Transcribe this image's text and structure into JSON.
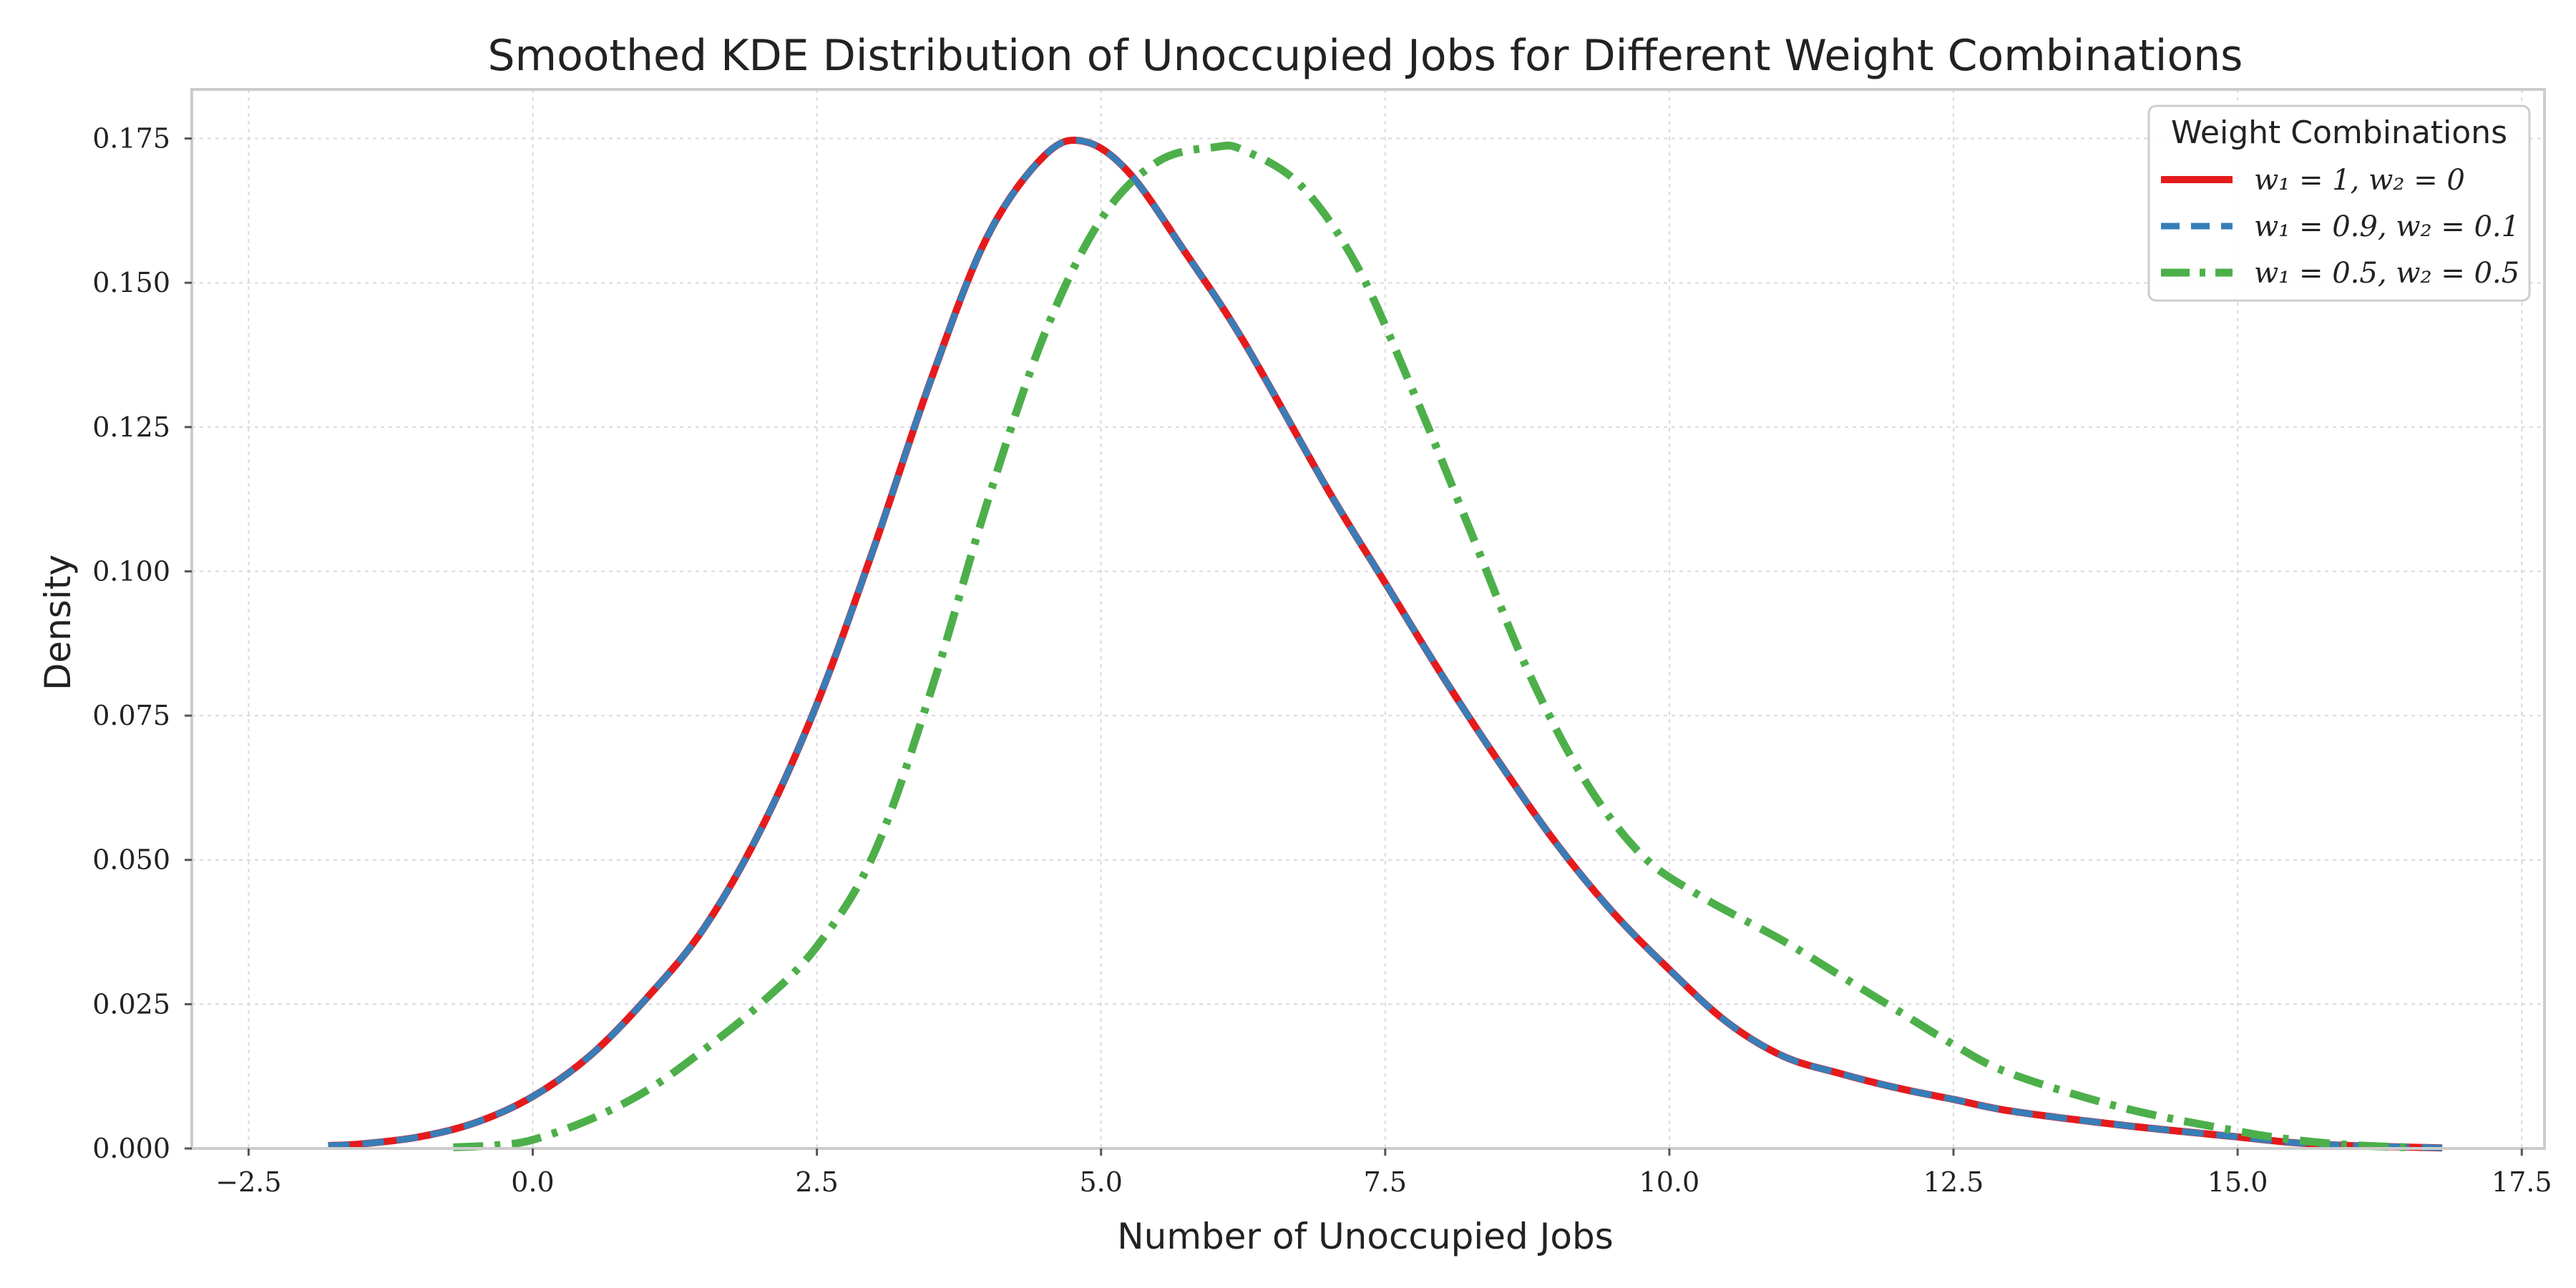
{
  "chart_data": {
    "type": "line",
    "title": "Smoothed KDE Distribution of Unoccupied Jobs for Different Weight Combinations",
    "xlabel": "Number of Unoccupied Jobs",
    "ylabel": "Density",
    "xlim": [
      -3.0,
      17.7
    ],
    "ylim": [
      0,
      0.1835
    ],
    "x_ticks": [
      -2.5,
      0.0,
      2.5,
      5.0,
      7.5,
      10.0,
      12.5,
      15.0,
      17.5
    ],
    "x_tick_labels": [
      "−2.5",
      "0.0",
      "2.5",
      "5.0",
      "7.5",
      "10.0",
      "12.5",
      "15.0",
      "17.5"
    ],
    "y_ticks": [
      0.0,
      0.025,
      0.05,
      0.075,
      0.1,
      0.125,
      0.15,
      0.175
    ],
    "y_tick_labels": [
      "0.000",
      "0.025",
      "0.050",
      "0.075",
      "0.100",
      "0.125",
      "0.150",
      "0.175"
    ],
    "grid": true,
    "legend": {
      "title": "Weight Combinations",
      "placement": "top-right"
    },
    "series": [
      {
        "name": "w1 = 1, w2 = 0",
        "legend_label": "w₁ = 1, w₂ = 0",
        "color": "#e41a1c",
        "style": "solid",
        "x": [
          -1.8,
          -1.5,
          -1.0,
          -0.5,
          0.0,
          0.5,
          1.0,
          1.5,
          2.0,
          2.5,
          3.0,
          3.5,
          4.0,
          4.5,
          4.85,
          5.25,
          5.75,
          6.25,
          7.0,
          7.5,
          8.0,
          8.5,
          9.0,
          9.5,
          10.0,
          10.5,
          11.0,
          11.5,
          12.0,
          12.5,
          13.0,
          14.0,
          15.0,
          15.5,
          16.0,
          16.8
        ],
        "y": [
          0.0005,
          0.0008,
          0.002,
          0.0045,
          0.009,
          0.016,
          0.026,
          0.038,
          0.055,
          0.077,
          0.104,
          0.133,
          0.158,
          0.172,
          0.1745,
          0.169,
          0.155,
          0.14,
          0.114,
          0.098,
          0.082,
          0.067,
          0.053,
          0.041,
          0.031,
          0.022,
          0.016,
          0.013,
          0.0105,
          0.0085,
          0.0065,
          0.004,
          0.002,
          0.001,
          0.0005,
          0.0001
        ]
      },
      {
        "name": "w1 = 0.9, w2 = 0.1",
        "legend_label": "w₁ = 0.9, w₂ = 0.1",
        "color": "#377eb8",
        "style": "dashed",
        "x": [
          -1.8,
          -1.5,
          -1.0,
          -0.5,
          0.0,
          0.5,
          1.0,
          1.5,
          2.0,
          2.5,
          3.0,
          3.5,
          4.0,
          4.5,
          4.85,
          5.25,
          5.75,
          6.25,
          7.0,
          7.5,
          8.0,
          8.5,
          9.0,
          9.5,
          10.0,
          10.5,
          11.0,
          11.5,
          12.0,
          12.5,
          13.0,
          14.0,
          15.0,
          15.5,
          16.0,
          16.8
        ],
        "y": [
          0.0005,
          0.0008,
          0.002,
          0.0045,
          0.009,
          0.016,
          0.026,
          0.038,
          0.055,
          0.077,
          0.104,
          0.133,
          0.158,
          0.172,
          0.1745,
          0.169,
          0.155,
          0.14,
          0.114,
          0.098,
          0.082,
          0.067,
          0.053,
          0.041,
          0.031,
          0.022,
          0.016,
          0.013,
          0.0105,
          0.0085,
          0.0065,
          0.004,
          0.002,
          0.001,
          0.0005,
          0.0001
        ]
      },
      {
        "name": "w1 = 0.5, w2 = 0.5",
        "legend_label": "w₁ = 0.5, w₂ = 0.5",
        "color": "#4daf4a",
        "style": "dashdot",
        "x": [
          -0.7,
          -0.3,
          0.0,
          0.5,
          1.0,
          1.5,
          2.0,
          2.5,
          3.0,
          3.5,
          4.0,
          4.5,
          5.0,
          5.5,
          6.0,
          6.25,
          6.75,
          7.25,
          7.75,
          8.25,
          8.75,
          9.25,
          9.75,
          10.25,
          11.0,
          11.5,
          12.0,
          12.5,
          13.0,
          14.0,
          15.0,
          15.5,
          16.0,
          16.5
        ],
        "y": [
          0.0002,
          0.0006,
          0.0015,
          0.005,
          0.01,
          0.017,
          0.025,
          0.035,
          0.051,
          0.079,
          0.112,
          0.141,
          0.161,
          0.171,
          0.1735,
          0.173,
          0.167,
          0.153,
          0.131,
          0.107,
          0.083,
          0.064,
          0.051,
          0.044,
          0.036,
          0.03,
          0.024,
          0.018,
          0.013,
          0.007,
          0.003,
          0.0015,
          0.0006,
          0.0002
        ]
      }
    ]
  }
}
